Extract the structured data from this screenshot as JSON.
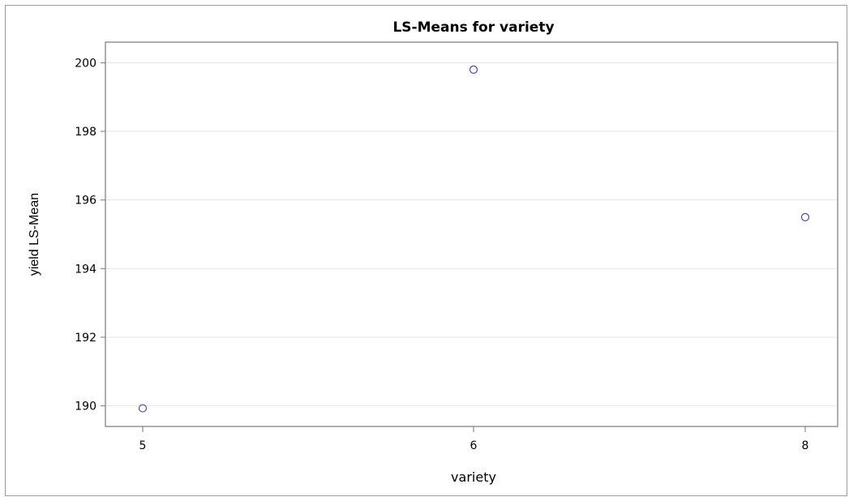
{
  "chart_data": {
    "type": "scatter",
    "title": "LS-Means for variety",
    "xlabel": "variety",
    "ylabel": "yield LS-Mean",
    "categories": [
      "5",
      "6",
      "8"
    ],
    "values": [
      189.93,
      199.8,
      195.5
    ],
    "y_ticks": [
      "190",
      "192",
      "194",
      "196",
      "198",
      "200"
    ],
    "ylim": [
      189.4,
      200.6
    ],
    "grid": true,
    "marker_color": "#4a4a9c",
    "frame_color": "#7a7a7a",
    "grid_color": "#e4e4e4"
  }
}
